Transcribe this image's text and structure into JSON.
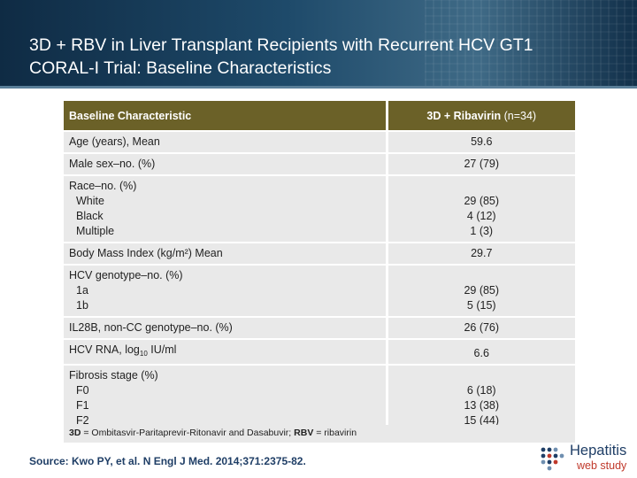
{
  "slide": {
    "title_line1": "3D + RBV in Liver Transplant Recipients with Recurrent HCV GT1",
    "title_line2": "CORAL-I Trial: Baseline Characteristics"
  },
  "table": {
    "header": {
      "col1": "Baseline Characteristic",
      "col2": "3D + Ribavirin",
      "col2_n": "(n=34)"
    },
    "age": {
      "label": "Age (years), Mean",
      "value": "59.6"
    },
    "male": {
      "label": "Male sex–no. (%)",
      "value": "27 (79)"
    },
    "race": {
      "label": "Race–no. (%)",
      "items": [
        "White",
        "Black",
        "Multiple"
      ],
      "values": [
        "29 (85)",
        "4 (12)",
        "1 (3)"
      ]
    },
    "bmi": {
      "label": "Body Mass Index (kg/m²) Mean",
      "value": "29.7"
    },
    "genotype": {
      "label": "HCV genotype–no. (%)",
      "items": [
        "1a",
        "1b"
      ],
      "values": [
        "29 (85)",
        "5 (15)"
      ]
    },
    "il28b": {
      "label": "IL28B, non-CC genotype–no. (%)",
      "value": "26 (76)"
    },
    "rna": {
      "label_prefix": "HCV RNA, log",
      "label_sub": "10",
      "label_suffix": " IU/ml",
      "value": "6.6"
    },
    "fibrosis": {
      "label": "Fibrosis stage (%)",
      "items": [
        "F0",
        "F1",
        "F2"
      ],
      "values": [
        "6 (18)",
        "13 (38)",
        "15 (44)"
      ]
    }
  },
  "footnote": {
    "abbr1": "3D",
    "def1": " = Ombitasvir-Paritaprevir-Ritonavir and Dasabuvir; ",
    "abbr2": "RBV",
    "def2": " = ribavirin"
  },
  "source": "Source: Kwo PY, et al. N Engl J Med. 2014;371:2375-82.",
  "logo": {
    "line1": "Hepatitis",
    "line2": "web study",
    "icon": "hepatitis-dots-icon"
  },
  "colors": {
    "header_bg": "#1e4a6a",
    "table_header": "#6b6128",
    "row_bg": "#e9e9e9",
    "source_text": "#1f3e66",
    "logo_accent": "#c0392b"
  }
}
